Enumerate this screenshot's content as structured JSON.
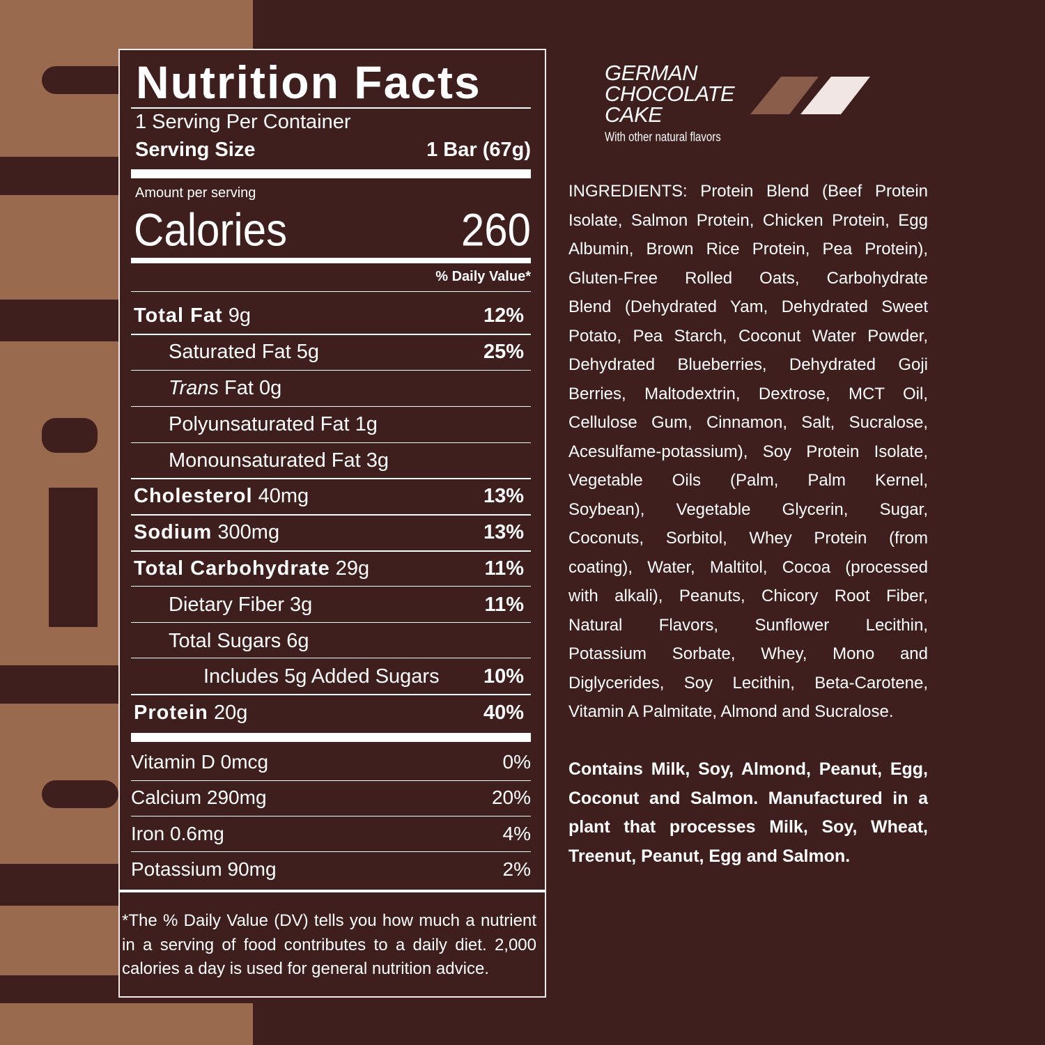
{
  "nutrition_facts": {
    "title": "Nutrition Facts",
    "servings_per_container": "1 Serving Per Container",
    "serving_size_label": "Serving Size",
    "serving_size_value": "1 Bar (67g)",
    "amount_per_serving": "Amount per serving",
    "calories_label": "Calories",
    "calories_value": "260",
    "daily_value_header": "% Daily Value*",
    "rows": [
      {
        "label": "Total Fat",
        "amount": "9g",
        "dv": "12%"
      },
      {
        "label": "Saturated Fat 5g",
        "amount": "",
        "dv": "25%"
      },
      {
        "label": "Trans",
        "amount": "Fat 0g",
        "dv": ""
      },
      {
        "label": "Polyunsaturated Fat 1g",
        "amount": "",
        "dv": ""
      },
      {
        "label": "Monounsaturated Fat 3g",
        "amount": "",
        "dv": ""
      },
      {
        "label": "Cholesterol",
        "amount": "40mg",
        "dv": "13%"
      },
      {
        "label": "Sodium",
        "amount": "300mg",
        "dv": "13%"
      },
      {
        "label": "Total Carbohydrate",
        "amount": "29g",
        "dv": "11%"
      },
      {
        "label": "Dietary Fiber 3g",
        "amount": "",
        "dv": "11%"
      },
      {
        "label": "Total Sugars 6g",
        "amount": "",
        "dv": ""
      },
      {
        "label": "Includes 5g Added Sugars",
        "amount": "",
        "dv": "10%"
      },
      {
        "label": "Protein",
        "amount": "20g",
        "dv": "40%"
      }
    ],
    "vitamins": [
      {
        "label": "Vitamin D 0mcg",
        "dv": "0%"
      },
      {
        "label": "Calcium 290mg",
        "dv": "20%"
      },
      {
        "label": "Iron 0.6mg",
        "dv": "4%"
      },
      {
        "label": "Potassium 90mg",
        "dv": "2%"
      }
    ],
    "footnote": "*The % Daily Value (DV) tells you how much a nutrient in a serving of food contributes to a daily diet. 2,000 calories a day is used for general nutrition advice."
  },
  "flavor": {
    "name_lines": [
      "GERMAN",
      "CHOCOLATE",
      "CAKE"
    ],
    "subtitle": "With other natural flavors",
    "swatch_colors": [
      "#8a5d4b",
      "#f2e6e4"
    ]
  },
  "ingredients_lines": [
    "INGREDIENTS: Protein Blend (Beef Protein",
    "Isolate, Salmon Protein, Chicken Protein, Egg",
    "Albumin, Brown Rice Protein, Pea Protein),",
    "Gluten-Free Rolled Oats, Carbohydrate",
    "Blend (Dehydrated Yam, Dehydrated Sweet",
    "Potato, Pea Starch, Coconut Water Powder,",
    "Dehydrated Blueberries, Dehydrated Goji",
    "Berries, Maltodextrin, Dextrose, MCT Oil,",
    "Cellulose Gum, Cinnamon, Salt, Sucralose,",
    "Acesulfame-potassium), Soy Protein Isolate,",
    "Vegetable Oils (Palm, Palm Kernel,",
    "Soybean), Vegetable Glycerin, Sugar,",
    "Coconuts, Sorbitol, Whey Protein (from",
    "coating), Water, Maltitol, Cocoa (processed",
    "with alkali), Peanuts, Chicory Root Fiber,",
    "Natural Flavors, Sunflower Lecithin,",
    "Potassium Sorbate, Whey, Mono and",
    "Diglycerides, Soy Lecithin, Beta-Carotene,",
    "Vitamin A Palmitate, Almond and Sucralose."
  ],
  "allergen_lines": [
    "Contains Milk, Soy, Almond, Peanut, Egg,",
    "Coconut and Salmon. Manufactured in a",
    "plant that processes Milk, Soy, Wheat,",
    "Treenut, Peanut, Egg and Salmon."
  ],
  "colors": {
    "background": "#3e1f1e",
    "accent_tan": "#9a6a4e",
    "text": "#ffffff"
  }
}
